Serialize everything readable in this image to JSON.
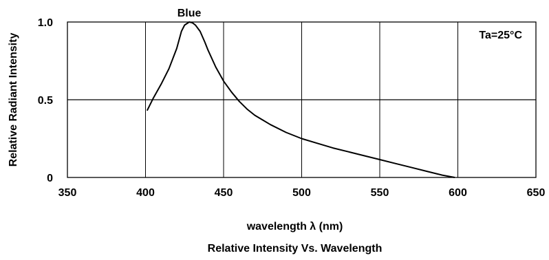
{
  "chart_data": {
    "type": "line",
    "title": "Relative Intensity Vs. Wavelength",
    "xlabel": "wavelength λ (nm)",
    "ylabel": "Relative Radiant Intensity",
    "annotation": "Ta=25°C",
    "xlim": [
      350,
      650
    ],
    "ylim": [
      0,
      1.0
    ],
    "x_ticks": [
      350,
      400,
      450,
      500,
      550,
      600,
      650
    ],
    "x_tick_labels": [
      "350",
      "400",
      "450",
      "500",
      "550",
      "600",
      "650"
    ],
    "y_ticks": [
      0,
      0.5,
      1.0
    ],
    "y_tick_labels": [
      "0",
      "0.5",
      "1.0"
    ],
    "grid": true,
    "series": [
      {
        "name": "Blue",
        "color": "#000000",
        "x": [
          401,
          405,
          410,
          415,
          420,
          423,
          425,
          428,
          430,
          432,
          435,
          438,
          440,
          445,
          450,
          455,
          460,
          465,
          470,
          480,
          490,
          500,
          510,
          520,
          530,
          540,
          550,
          560,
          570,
          580,
          590,
          598
        ],
        "y": [
          0.43,
          0.51,
          0.6,
          0.7,
          0.83,
          0.94,
          0.98,
          1.0,
          0.995,
          0.98,
          0.94,
          0.87,
          0.82,
          0.71,
          0.62,
          0.55,
          0.49,
          0.44,
          0.4,
          0.34,
          0.29,
          0.25,
          0.22,
          0.19,
          0.165,
          0.14,
          0.115,
          0.09,
          0.065,
          0.04,
          0.015,
          0.0
        ]
      }
    ]
  }
}
